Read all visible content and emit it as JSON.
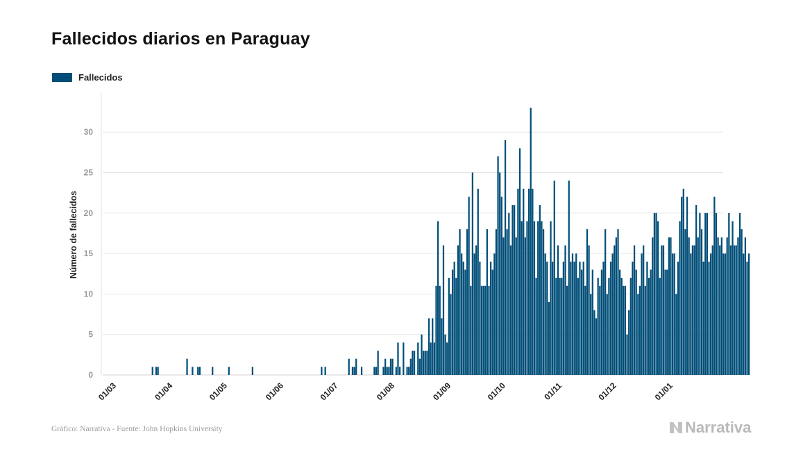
{
  "title": "Fallecidos diarios en Paraguay",
  "legend": {
    "label": "Fallecidos"
  },
  "source": "Gráfico: Narrativa - Fuente: John Hopkins University",
  "brand": "Narrativa",
  "colors": {
    "bar": "#004e78",
    "grid": "#e6e6e6",
    "tick": "#9a9a9a",
    "axis_label": "#222222"
  },
  "chart_data": {
    "type": "bar",
    "title": "Fallecidos diarios en Paraguay",
    "xlabel": "",
    "ylabel": "Número de fallecidos",
    "ylim": [
      0,
      35
    ],
    "yticks": [
      0,
      5,
      10,
      15,
      20,
      25,
      30
    ],
    "start_date": "2020-03-01",
    "x_tick_labels": [
      "01/03",
      "01/04",
      "01/05",
      "01/06",
      "01/07",
      "01/08",
      "01/09",
      "01/10",
      "01/11",
      "01/12",
      "01/01"
    ],
    "x_tick_day_index": [
      0,
      31,
      61,
      92,
      122,
      153,
      184,
      214,
      245,
      275,
      306
    ],
    "series": [
      {
        "name": "Fallecidos",
        "values": [
          0,
          0,
          0,
          0,
          0,
          0,
          0,
          0,
          0,
          0,
          0,
          0,
          0,
          0,
          0,
          0,
          0,
          0,
          0,
          0,
          0,
          0,
          1,
          0,
          1,
          1,
          0,
          0,
          0,
          0,
          0,
          0,
          0,
          0,
          0,
          0,
          0,
          0,
          0,
          0,
          0,
          2,
          0,
          0,
          1,
          0,
          0,
          1,
          1,
          0,
          0,
          0,
          0,
          0,
          0,
          1,
          0,
          0,
          0,
          0,
          0,
          0,
          0,
          0,
          1,
          0,
          0,
          0,
          0,
          0,
          0,
          0,
          0,
          0,
          0,
          0,
          0,
          1,
          0,
          0,
          0,
          0,
          0,
          0,
          0,
          0,
          0,
          0,
          0,
          0,
          0,
          0,
          0,
          0,
          0,
          0,
          0,
          0,
          0,
          0,
          0,
          0,
          0,
          0,
          0,
          0,
          0,
          0,
          0,
          0,
          0,
          0,
          0,
          0,
          0,
          1,
          0,
          1,
          0,
          0,
          0,
          0,
          0,
          0,
          0,
          0,
          0,
          0,
          0,
          0,
          2,
          0,
          1,
          1,
          2,
          0,
          0,
          1,
          0,
          0,
          0,
          0,
          0,
          0,
          1,
          1,
          3,
          0,
          0,
          1,
          2,
          1,
          1,
          2,
          2,
          0,
          1,
          4,
          1,
          0,
          4,
          0,
          1,
          1,
          2,
          3,
          3,
          0,
          4,
          2,
          5,
          3,
          3,
          3,
          7,
          4,
          7,
          4,
          11,
          19,
          11,
          7,
          16,
          5,
          4,
          12,
          10,
          13,
          14,
          12,
          16,
          18,
          15,
          14,
          13,
          18,
          22,
          11,
          25,
          15,
          16,
          23,
          14,
          11,
          11,
          11,
          18,
          11,
          14,
          13,
          15,
          18,
          27,
          25,
          22,
          17,
          29,
          18,
          20,
          16,
          21,
          21,
          17,
          23,
          28,
          19,
          23,
          17,
          19,
          23,
          33,
          23,
          19,
          12,
          19,
          21,
          19,
          18,
          15,
          14,
          9,
          19,
          14,
          24,
          12,
          16,
          12,
          12,
          14,
          16,
          11,
          24,
          14,
          15,
          14,
          15,
          12,
          14,
          13,
          14,
          11,
          18,
          16,
          10,
          13,
          8,
          7,
          12,
          11,
          13,
          14,
          18,
          10,
          12,
          14,
          15,
          16,
          17,
          18,
          13,
          12,
          11,
          11,
          5,
          8,
          12,
          14,
          16,
          13,
          10,
          11,
          15,
          16,
          11,
          14,
          12,
          13,
          17,
          20,
          20,
          19,
          12,
          16,
          16,
          13,
          13,
          17,
          17,
          15,
          15,
          10,
          14,
          19,
          22,
          23,
          18,
          22,
          17,
          15,
          16,
          16,
          21,
          17,
          20,
          18,
          14,
          20,
          20,
          14,
          15,
          16,
          22,
          20,
          17,
          16,
          17,
          15,
          15,
          17,
          20,
          16,
          19,
          16,
          16,
          17,
          20,
          18,
          15,
          17,
          14,
          15
        ]
      }
    ]
  }
}
